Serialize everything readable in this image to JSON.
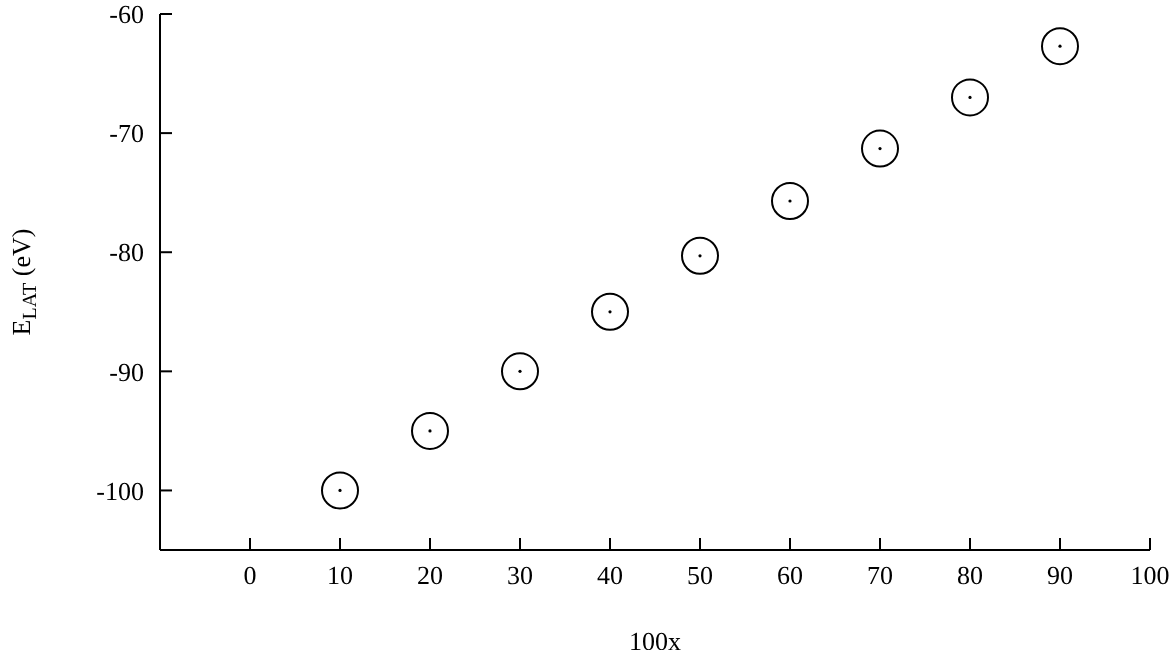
{
  "chart_data": {
    "type": "scatter",
    "xlabel": "100x",
    "ylabel": "E$_{LAT}$ (eV)",
    "x": [
      10,
      20,
      30,
      40,
      50,
      60,
      70,
      80,
      90
    ],
    "series": [
      {
        "color": "#000000",
        "values": [
          -100,
          -95,
          -90,
          -85,
          -80.3,
          -75.7,
          -71.3,
          -67,
          -62.7
        ]
      }
    ],
    "xlim": [
      -10,
      100
    ],
    "xticks": [
      0,
      10,
      20,
      30,
      40,
      50,
      60,
      70,
      80,
      90,
      100
    ],
    "ylim": [
      -105,
      -60
    ],
    "yticks": [
      -100,
      -90,
      -80,
      -70,
      -60
    ],
    "marker": "circle",
    "grid": false,
    "legend": false
  }
}
